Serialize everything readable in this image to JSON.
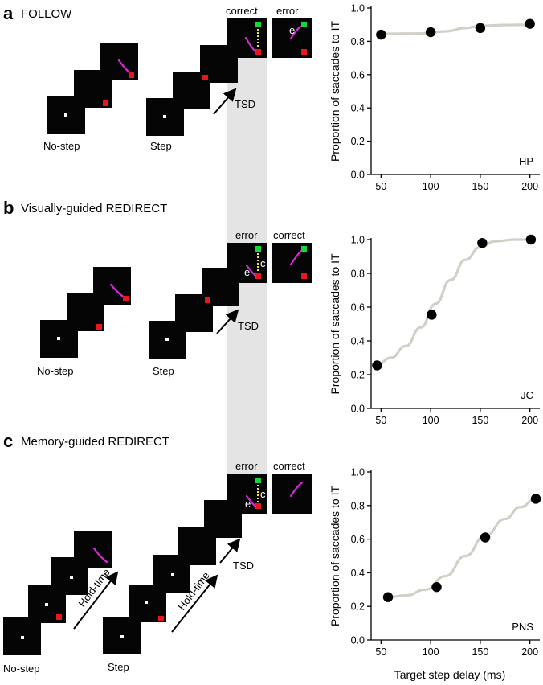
{
  "panels": [
    {
      "letter": "a",
      "title": "FOLLOW",
      "nostep_label": "No-step",
      "step_label": "Step",
      "tsd_label": "TSD",
      "hold_label": "",
      "outcome_left": "correct",
      "outcome_right": "error",
      "trace_letters": [
        "e"
      ]
    },
    {
      "letter": "b",
      "title": "Visually-guided REDIRECT",
      "nostep_label": "No-step",
      "step_label": "Step",
      "tsd_label": "TSD",
      "hold_label": "",
      "outcome_left": "error",
      "outcome_right": "correct",
      "trace_letters": [
        "e",
        "c"
      ]
    },
    {
      "letter": "c",
      "title": "Memory-guided REDIRECT",
      "nostep_label": "No-step",
      "step_label": "Step",
      "tsd_label": "TSD",
      "hold_label": "Hold-time",
      "outcome_left": "error",
      "outcome_right": "correct",
      "trace_letters": [
        "e",
        "c"
      ]
    }
  ],
  "colors": {
    "screen": "#050505",
    "fixation": "#ffffff",
    "target_red": "#e8171b",
    "target_green": "#16d63c",
    "saccade": "#d62bd6",
    "dotted": "#f5e04a",
    "tsd_band": "#e4e4e4",
    "fit_curve": "#d2cfc6",
    "marker": "#000000"
  },
  "x_axis_title": "Target step delay (ms)",
  "chart_data": [
    {
      "type": "scatter",
      "ylabel": "Proportion of saccades to IT",
      "xlim": [
        40,
        210
      ],
      "ylim": [
        0,
        1.0
      ],
      "xticks": [
        50,
        100,
        150,
        200
      ],
      "yticks": [
        0.0,
        0.2,
        0.4,
        0.6,
        0.8,
        1.0
      ],
      "annotation": "HP",
      "points": [
        {
          "x": 50,
          "y": 0.84
        },
        {
          "x": 100,
          "y": 0.855
        },
        {
          "x": 150,
          "y": 0.88
        },
        {
          "x": 200,
          "y": 0.905
        }
      ],
      "fit": [
        [
          50,
          0.845
        ],
        [
          90,
          0.847
        ],
        [
          115,
          0.86
        ],
        [
          135,
          0.88
        ],
        [
          150,
          0.893
        ],
        [
          175,
          0.898
        ],
        [
          200,
          0.9
        ]
      ]
    },
    {
      "type": "scatter",
      "ylabel": "Proportion of saccades to IT",
      "xlim": [
        40,
        210
      ],
      "ylim": [
        0,
        1.0
      ],
      "xticks": [
        50,
        100,
        150,
        200
      ],
      "yticks": [
        0.0,
        0.2,
        0.4,
        0.6,
        0.8,
        1.0
      ],
      "annotation": "JC",
      "points": [
        {
          "x": 46,
          "y": 0.255
        },
        {
          "x": 101,
          "y": 0.555
        },
        {
          "x": 152,
          "y": 0.98
        },
        {
          "x": 201,
          "y": 1.0
        }
      ],
      "fit": [
        [
          46,
          0.26
        ],
        [
          60,
          0.3
        ],
        [
          75,
          0.37
        ],
        [
          90,
          0.48
        ],
        [
          105,
          0.62
        ],
        [
          120,
          0.76
        ],
        [
          135,
          0.88
        ],
        [
          150,
          0.955
        ],
        [
          165,
          0.99
        ],
        [
          185,
          1.0
        ],
        [
          200,
          1.0
        ]
      ]
    },
    {
      "type": "scatter",
      "ylabel": "Proportion of saccades to IT",
      "xlim": [
        40,
        210
      ],
      "ylim": [
        0,
        1.0
      ],
      "xticks": [
        50,
        100,
        150,
        200
      ],
      "yticks": [
        0.0,
        0.2,
        0.4,
        0.6,
        0.8,
        1.0
      ],
      "annotation": "PNS",
      "points": [
        {
          "x": 57,
          "y": 0.255
        },
        {
          "x": 106,
          "y": 0.315
        },
        {
          "x": 155,
          "y": 0.61
        },
        {
          "x": 206,
          "y": 0.84
        }
      ],
      "fit": [
        [
          57,
          0.255
        ],
        [
          75,
          0.265
        ],
        [
          95,
          0.3
        ],
        [
          115,
          0.38
        ],
        [
          135,
          0.5
        ],
        [
          155,
          0.62
        ],
        [
          175,
          0.72
        ],
        [
          190,
          0.79
        ],
        [
          206,
          0.84
        ]
      ]
    }
  ]
}
